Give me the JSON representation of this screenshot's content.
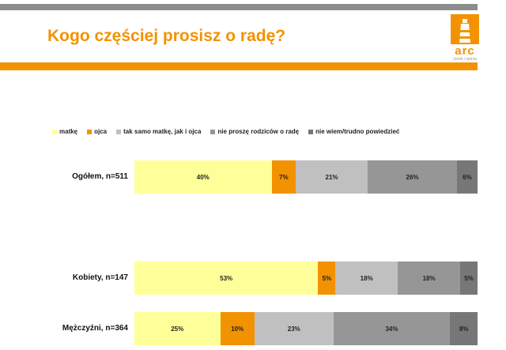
{
  "slide": {
    "title": "Kogo częściej prosisz o radę?",
    "logo_text": "arc",
    "logo_subtext": "rynek i opinia"
  },
  "colors": {
    "accent": "#f39200",
    "top_bar": "#8c8c8c"
  },
  "chart_data": {
    "type": "bar",
    "orientation": "horizontal",
    "stacked": true,
    "percent_scale": true,
    "categories": [
      "Ogółem, n=511",
      "Kobiety, n=147",
      "Mężczyźni, n=364"
    ],
    "series": [
      {
        "name": "matkę",
        "color": "#ffff99",
        "values": [
          40,
          53,
          25
        ],
        "labels": [
          "40%",
          "53%",
          "25%"
        ]
      },
      {
        "name": "ojca",
        "color": "#f39200",
        "values": [
          7,
          5,
          10
        ],
        "labels": [
          "7%",
          "5%",
          "10%"
        ]
      },
      {
        "name": "tak samo matkę, jak i ojca",
        "color": "#c0c0c0",
        "values": [
          21,
          18,
          23
        ],
        "labels": [
          "21%",
          "18%",
          "23%"
        ]
      },
      {
        "name": "nie proszę rodziców o radę",
        "color": "#969696",
        "values": [
          26,
          18,
          34
        ],
        "labels": [
          "26%",
          "18%",
          "34%"
        ]
      },
      {
        "name": "nie wiem/trudno powiedzieć",
        "color": "#777777",
        "values": [
          6,
          5,
          8
        ],
        "labels": [
          "6%",
          "5%",
          "8%"
        ]
      }
    ],
    "title": "Kogo częściej prosisz o radę?",
    "legend_position": "top",
    "xlim": [
      0,
      100
    ]
  }
}
